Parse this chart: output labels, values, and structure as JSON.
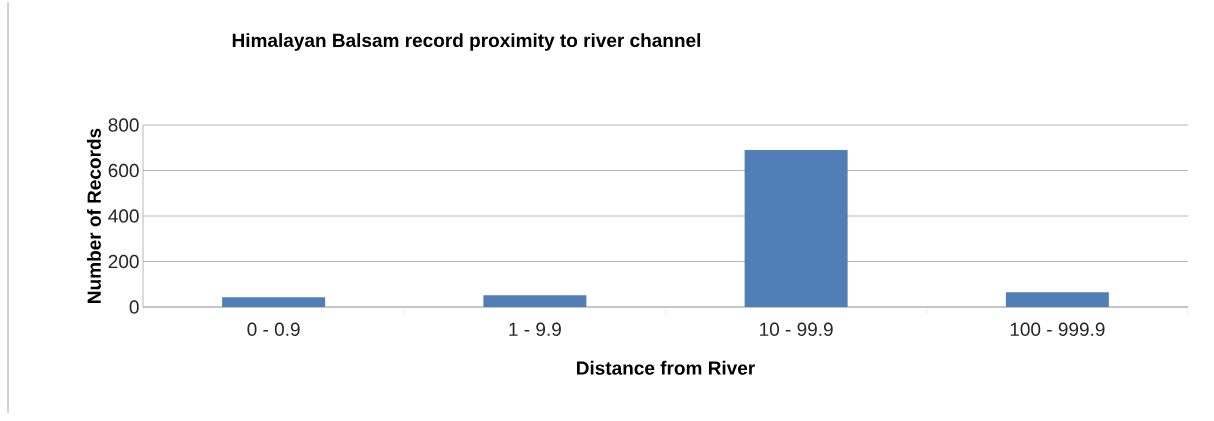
{
  "chart_data": {
    "type": "bar",
    "title": "Himalayan Balsam record proximity to river channel",
    "xlabel": "Distance from River",
    "ylabel": "Number of Records",
    "categories": [
      "0 - 0.9",
      "1 - 9.9",
      "10 - 99.9",
      "100 - 999.9"
    ],
    "values": [
      43,
      52,
      690,
      65
    ],
    "color": "#4f7fb6",
    "ylim": [
      0,
      800
    ],
    "yticks": [
      0,
      200,
      400,
      600,
      800
    ],
    "grid": "y"
  }
}
